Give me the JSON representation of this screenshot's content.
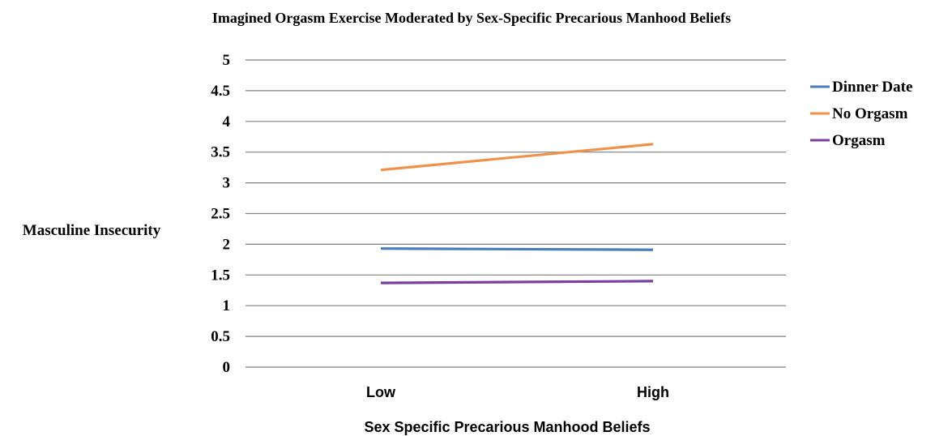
{
  "chart_data": {
    "type": "line",
    "title": "Imagined Orgasm Exercise Moderated by Sex-Specific Precarious Manhood Beliefs",
    "xlabel": "Sex Specific Precarious Manhood Beliefs",
    "ylabel": "Masculine Insecurity",
    "categories": [
      "Low",
      "High"
    ],
    "ylim": [
      0,
      5
    ],
    "yticks": [
      "0",
      "0.5",
      "1",
      "1.5",
      "2",
      "2.5",
      "3",
      "3.5",
      "4",
      "4.5",
      "5"
    ],
    "grid": true,
    "legend_position": "right",
    "series": [
      {
        "name": "Dinner Date",
        "values": [
          1.93,
          1.91
        ],
        "color": "#4a7ebb"
      },
      {
        "name": "No Orgasm",
        "values": [
          3.21,
          3.63
        ],
        "color": "#f0914a"
      },
      {
        "name": "Orgasm",
        "values": [
          1.37,
          1.4
        ],
        "color": "#7b3fa0"
      }
    ]
  }
}
